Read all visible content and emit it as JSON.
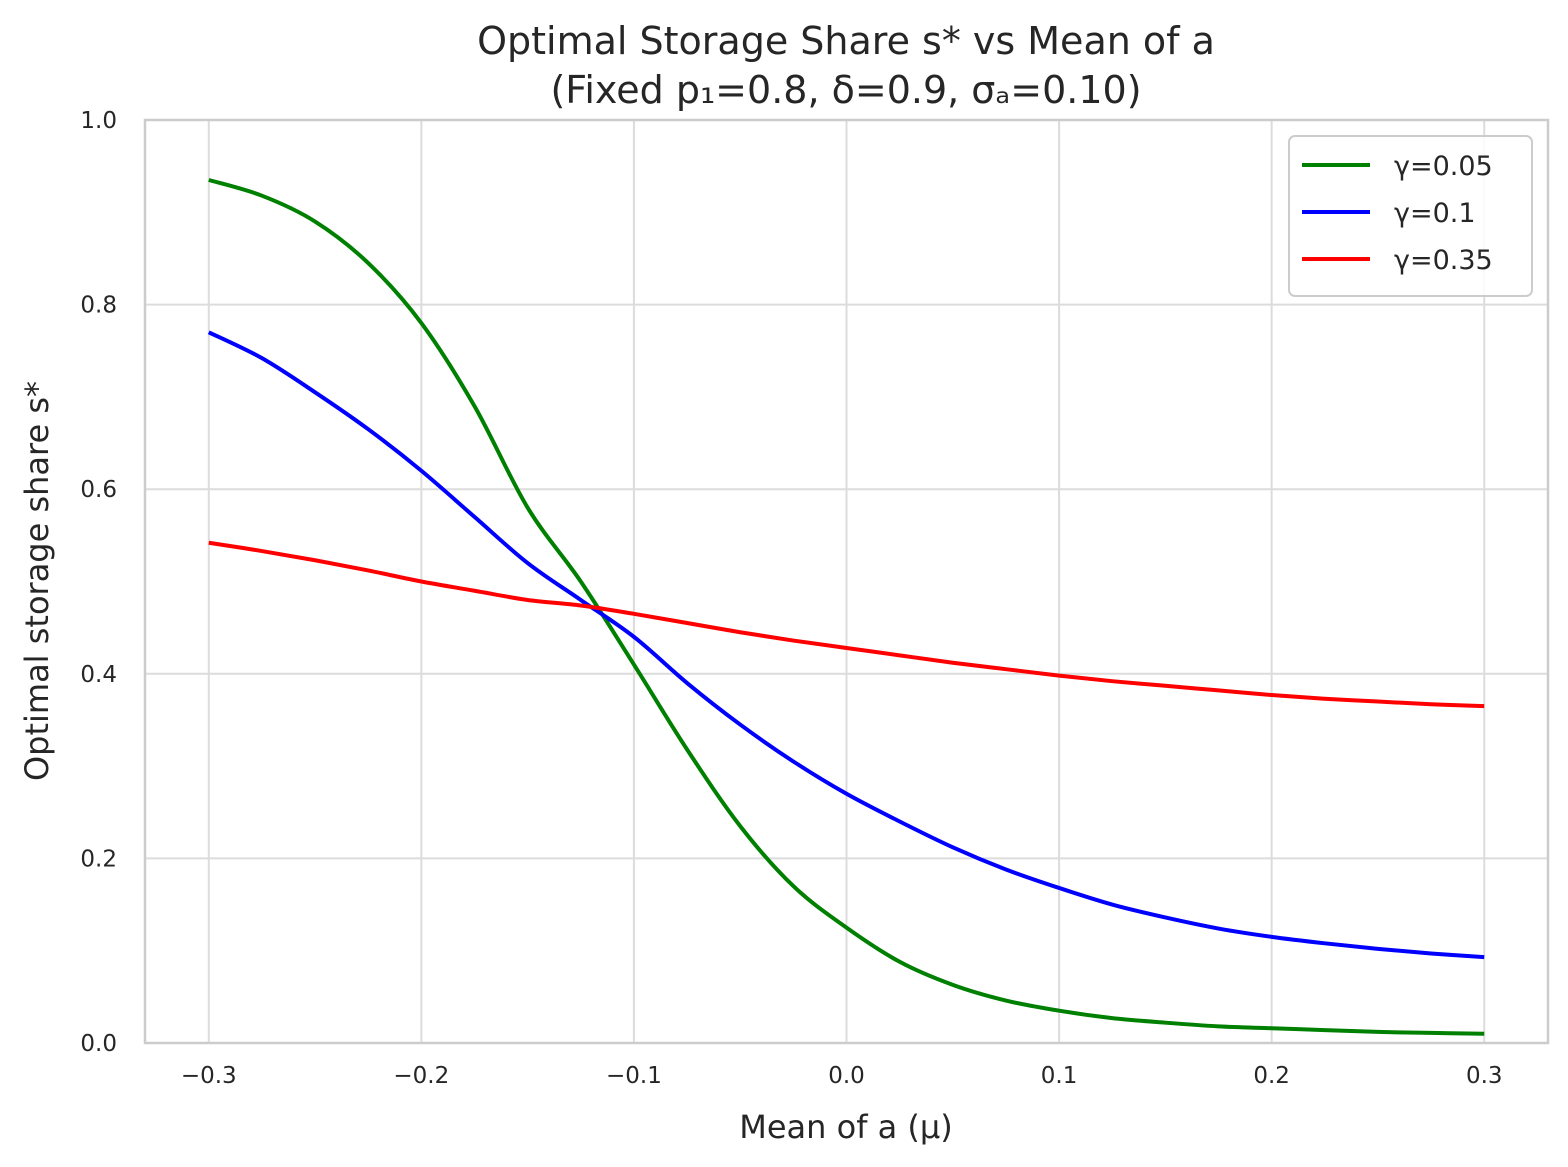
{
  "chart_data": {
    "type": "line",
    "title": "Optimal Storage Share s* vs Mean of a",
    "subtitle": "(Fixed p₁=0.8, δ=0.9, σₐ=0.10)",
    "xlabel": "Mean of a (μ)",
    "ylabel": "Optimal storage share s*",
    "xlim": [
      -0.33,
      0.33
    ],
    "ylim": [
      0,
      1
    ],
    "xticks": [
      -0.3,
      -0.2,
      -0.1,
      0.0,
      0.1,
      0.2,
      0.3
    ],
    "xtick_labels": [
      "−0.3",
      "−0.2",
      "−0.1",
      "0.0",
      "0.1",
      "0.2",
      "0.3"
    ],
    "yticks": [
      0.0,
      0.2,
      0.4,
      0.6,
      0.8,
      1.0
    ],
    "ytick_labels": [
      "0.0",
      "0.2",
      "0.4",
      "0.6",
      "0.8",
      "1.0"
    ],
    "grid": true,
    "legend_position": "top-right",
    "x": [
      -0.3,
      -0.275,
      -0.25,
      -0.225,
      -0.2,
      -0.175,
      -0.15,
      -0.125,
      -0.1,
      -0.075,
      -0.05,
      -0.025,
      0.0,
      0.025,
      0.05,
      0.075,
      0.1,
      0.125,
      0.15,
      0.175,
      0.2,
      0.225,
      0.25,
      0.275,
      0.3
    ],
    "series": [
      {
        "name": "γ=0.05",
        "color": "#008000",
        "values": [
          0.935,
          0.918,
          0.89,
          0.845,
          0.78,
          0.69,
          0.58,
          0.5,
          0.41,
          0.318,
          0.235,
          0.17,
          0.125,
          0.088,
          0.063,
          0.046,
          0.035,
          0.027,
          0.022,
          0.018,
          0.016,
          0.014,
          0.012,
          0.011,
          0.01
        ]
      },
      {
        "name": "γ=0.1",
        "color": "#0000ff",
        "values": [
          0.77,
          0.742,
          0.705,
          0.665,
          0.62,
          0.57,
          0.52,
          0.48,
          0.44,
          0.39,
          0.345,
          0.305,
          0.27,
          0.24,
          0.212,
          0.188,
          0.168,
          0.15,
          0.136,
          0.124,
          0.115,
          0.108,
          0.102,
          0.097,
          0.093
        ]
      },
      {
        "name": "γ=0.35",
        "color": "#ff0000",
        "values": [
          0.542,
          0.533,
          0.523,
          0.512,
          0.5,
          0.49,
          0.48,
          0.474,
          0.465,
          0.455,
          0.445,
          0.436,
          0.428,
          0.42,
          0.412,
          0.405,
          0.398,
          0.392,
          0.387,
          0.382,
          0.377,
          0.373,
          0.37,
          0.367,
          0.365
        ]
      }
    ]
  }
}
